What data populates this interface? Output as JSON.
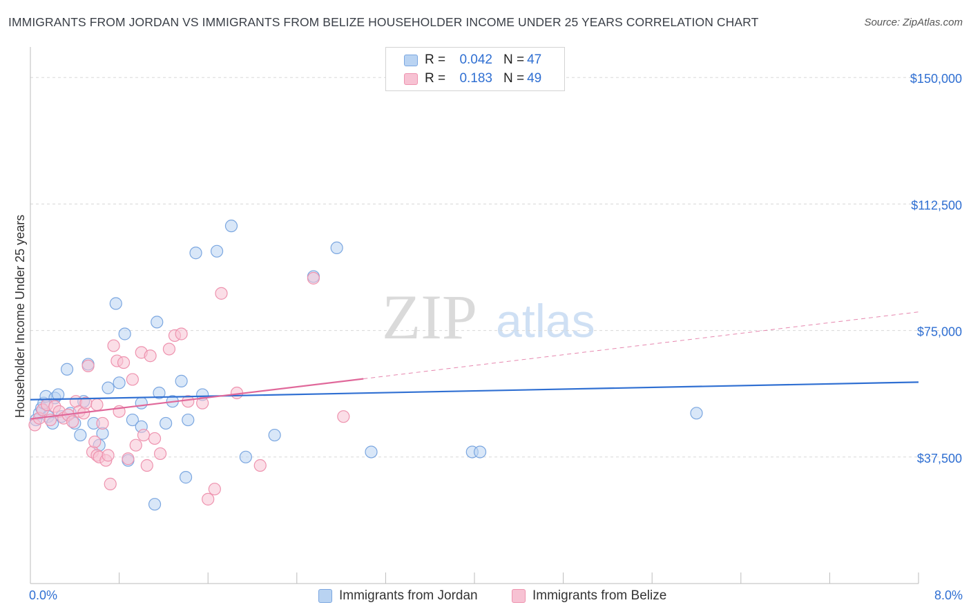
{
  "title": "IMMIGRANTS FROM JORDAN VS IMMIGRANTS FROM BELIZE HOUSEHOLDER INCOME UNDER 25 YEARS CORRELATION CHART",
  "source": "Source: ZipAtlas.com",
  "legend": {
    "jordan": {
      "r_label": "R =",
      "r_value": "0.042",
      "n_label": "N =",
      "n_value": "47"
    },
    "belize": {
      "r_label": "R =",
      "r_value": "0.183",
      "n_label": "N =",
      "n_value": "49"
    }
  },
  "bottom_legend": {
    "jordan": "Immigrants from Jordan",
    "belize": "Immigrants from Belize"
  },
  "x_axis": {
    "min_label": "0.0%",
    "max_label": "8.0%"
  },
  "watermark": {
    "zip": "ZIP",
    "atlas": "atlas"
  },
  "colors": {
    "jordan": "#2f6fd2",
    "jordan_fill": "#b9d3f2",
    "belize": "#e0689a",
    "belize_fill": "#f7c2d3",
    "axis_text": "#2f6fd2"
  },
  "chart_data": {
    "type": "scatter",
    "title": "IMMIGRANTS FROM JORDAN VS IMMIGRANTS FROM BELIZE HOUSEHOLDER INCOME UNDER 25 YEARS CORRELATION CHART",
    "xlabel": "",
    "ylabel": "Householder Income Under 25 years",
    "xlim": [
      0,
      8
    ],
    "ylim": [
      0,
      157000
    ],
    "y_ticks": [
      37500,
      75000,
      112500,
      150000
    ],
    "y_tick_labels": [
      "$37,500",
      "$75,000",
      "$112,500",
      "$150,000"
    ],
    "grid": true,
    "series": [
      {
        "name": "Immigrants from Jordan",
        "r": 0.042,
        "n": 47,
        "trend": {
          "x": [
            0.0,
            8.0
          ],
          "y": [
            54500,
            59700
          ],
          "dashed_from": null
        },
        "points": [
          [
            0.05,
            48500
          ],
          [
            0.08,
            50500
          ],
          [
            0.1,
            52000
          ],
          [
            0.12,
            53500
          ],
          [
            0.14,
            55500
          ],
          [
            0.16,
            49500
          ],
          [
            0.2,
            47500
          ],
          [
            0.22,
            55000
          ],
          [
            0.25,
            56000
          ],
          [
            0.28,
            49500
          ],
          [
            0.33,
            63500
          ],
          [
            0.36,
            50500
          ],
          [
            0.4,
            47500
          ],
          [
            0.45,
            44000
          ],
          [
            0.48,
            54000
          ],
          [
            0.52,
            65000
          ],
          [
            0.57,
            47500
          ],
          [
            0.62,
            41000
          ],
          [
            0.65,
            44500
          ],
          [
            0.7,
            58000
          ],
          [
            0.77,
            83000
          ],
          [
            0.8,
            59500
          ],
          [
            0.85,
            74000
          ],
          [
            0.88,
            36500
          ],
          [
            0.92,
            48500
          ],
          [
            1.0,
            46500
          ],
          [
            1.0,
            53500
          ],
          [
            1.12,
            23500
          ],
          [
            1.14,
            77500
          ],
          [
            1.16,
            56500
          ],
          [
            1.22,
            47500
          ],
          [
            1.28,
            54000
          ],
          [
            1.36,
            60000
          ],
          [
            1.4,
            31500
          ],
          [
            1.42,
            48500
          ],
          [
            1.49,
            98000
          ],
          [
            1.55,
            56000
          ],
          [
            1.68,
            98500
          ],
          [
            1.81,
            106000
          ],
          [
            1.94,
            37500
          ],
          [
            2.2,
            44000
          ],
          [
            2.55,
            91000
          ],
          [
            2.76,
            99500
          ],
          [
            3.07,
            39000
          ],
          [
            3.98,
            39000
          ],
          [
            4.05,
            39000
          ],
          [
            6.0,
            50500
          ]
        ]
      },
      {
        "name": "Immigrants from Belize",
        "r": 0.183,
        "n": 49,
        "trend": {
          "x": [
            0.0,
            8.0
          ],
          "y": [
            48800,
            80500
          ],
          "dashed_from": 3.0
        },
        "points": [
          [
            0.04,
            47000
          ],
          [
            0.08,
            49000
          ],
          [
            0.11,
            51500
          ],
          [
            0.15,
            53000
          ],
          [
            0.18,
            48500
          ],
          [
            0.22,
            52500
          ],
          [
            0.26,
            51000
          ],
          [
            0.3,
            49000
          ],
          [
            0.34,
            50000
          ],
          [
            0.38,
            48000
          ],
          [
            0.41,
            54000
          ],
          [
            0.44,
            51000
          ],
          [
            0.48,
            50500
          ],
          [
            0.52,
            64500
          ],
          [
            0.56,
            39000
          ],
          [
            0.58,
            42000
          ],
          [
            0.6,
            38000
          ],
          [
            0.62,
            37500
          ],
          [
            0.65,
            47500
          ],
          [
            0.68,
            36500
          ],
          [
            0.7,
            38000
          ],
          [
            0.72,
            29500
          ],
          [
            0.75,
            70500
          ],
          [
            0.78,
            66000
          ],
          [
            0.8,
            51000
          ],
          [
            0.84,
            65500
          ],
          [
            0.88,
            37000
          ],
          [
            0.92,
            60500
          ],
          [
            0.95,
            41000
          ],
          [
            1.0,
            68500
          ],
          [
            1.02,
            44000
          ],
          [
            1.05,
            35000
          ],
          [
            1.08,
            67500
          ],
          [
            1.12,
            43000
          ],
          [
            1.17,
            38500
          ],
          [
            1.25,
            69500
          ],
          [
            1.3,
            73500
          ],
          [
            1.36,
            74000
          ],
          [
            1.42,
            54000
          ],
          [
            1.55,
            53500
          ],
          [
            1.6,
            25000
          ],
          [
            1.66,
            28000
          ],
          [
            1.72,
            86000
          ],
          [
            1.86,
            56500
          ],
          [
            2.07,
            35000
          ],
          [
            2.55,
            90500
          ],
          [
            2.82,
            49500
          ],
          [
            0.5,
            53500
          ],
          [
            0.6,
            53000
          ]
        ]
      }
    ]
  }
}
